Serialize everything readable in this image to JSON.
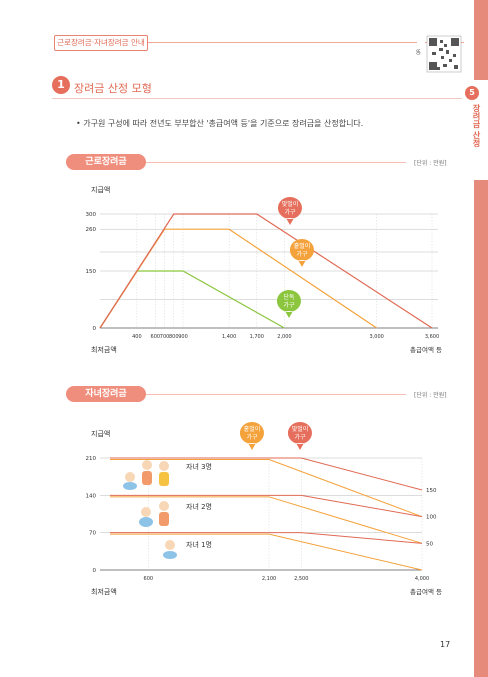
{
  "header": {
    "tag": "근로장려금·자녀장려금 안내"
  },
  "side": {
    "number": "5",
    "label": "장려금 산정"
  },
  "section": {
    "number": "1",
    "title": "장려금 산정 모형"
  },
  "bullet": "• 가구원 구성에 따라 전년도 부부합산 '총급여액 등'을 기준으로 장려금을 산정합니다.",
  "chart1": {
    "pill": "근로장려금",
    "unit": "[단위 : 만원]",
    "ylabel": "지급액",
    "xlabel_left": "최저금액",
    "xlabel_right": "총급여액 등",
    "y_ticks": [
      "300",
      "260",
      "150",
      "0"
    ],
    "x_ticks": [
      "400",
      "600",
      "700",
      "800",
      "900",
      "1,400",
      "1,700",
      "2,000",
      "3,000",
      "3,600"
    ],
    "bubbles": {
      "couple": "맞벌이\n가구",
      "single_earner": "홑벌이\n가구",
      "single": "단독\n가구"
    }
  },
  "chart2": {
    "pill": "자녀장려금",
    "unit": "[단위 : 만원]",
    "ylabel": "지급액",
    "xlabel_left": "최저금액",
    "xlabel_right": "총급여액 등",
    "y_ticks": [
      "210",
      "140",
      "70",
      "0"
    ],
    "x_ticks": [
      "600",
      "2,100",
      "2,500",
      "4,000"
    ],
    "right_values": [
      "150",
      "100",
      "50"
    ],
    "child_labels": [
      "자녀 3명",
      "자녀 2명",
      "자녀 1명"
    ],
    "bubbles": {
      "single_earner": "홑벌이\n가구",
      "couple": "맞벌이\n가구"
    }
  },
  "chart_data": [
    {
      "type": "line",
      "title": "근로장려금",
      "xlabel": "총급여액 등",
      "ylabel": "지급액",
      "series": [
        {
          "name": "단독 가구",
          "x": [
            0,
            400,
            900,
            2000
          ],
          "y": [
            0,
            150,
            150,
            0
          ]
        },
        {
          "name": "홑벌이 가구",
          "x": [
            0,
            700,
            1400,
            3000
          ],
          "y": [
            0,
            260,
            260,
            0
          ]
        },
        {
          "name": "맞벌이 가구",
          "x": [
            0,
            800,
            1700,
            3600
          ],
          "y": [
            0,
            300,
            300,
            0
          ]
        }
      ],
      "xlim": [
        0,
        3600
      ],
      "ylim": [
        0,
        300
      ]
    },
    {
      "type": "line",
      "title": "자녀장려금",
      "xlabel": "총급여액 등",
      "ylabel": "지급액",
      "series": [
        {
          "name": "홑벌이 가구",
          "x": [
            600,
            2100,
            4000
          ],
          "y": [
            210,
            210,
            150
          ]
        },
        {
          "name": "맞벌이 가구",
          "x": [
            600,
            2500,
            4000
          ],
          "y": [
            210,
            210,
            100
          ]
        }
      ],
      "xlim": [
        0,
        4000
      ],
      "ylim": [
        0,
        210
      ]
    }
  ],
  "page": {
    "number": "17"
  },
  "colors": {
    "accent": "#e56f5c",
    "orange": "#f4a23c",
    "green": "#8cc63f",
    "red": "#e06a54"
  }
}
